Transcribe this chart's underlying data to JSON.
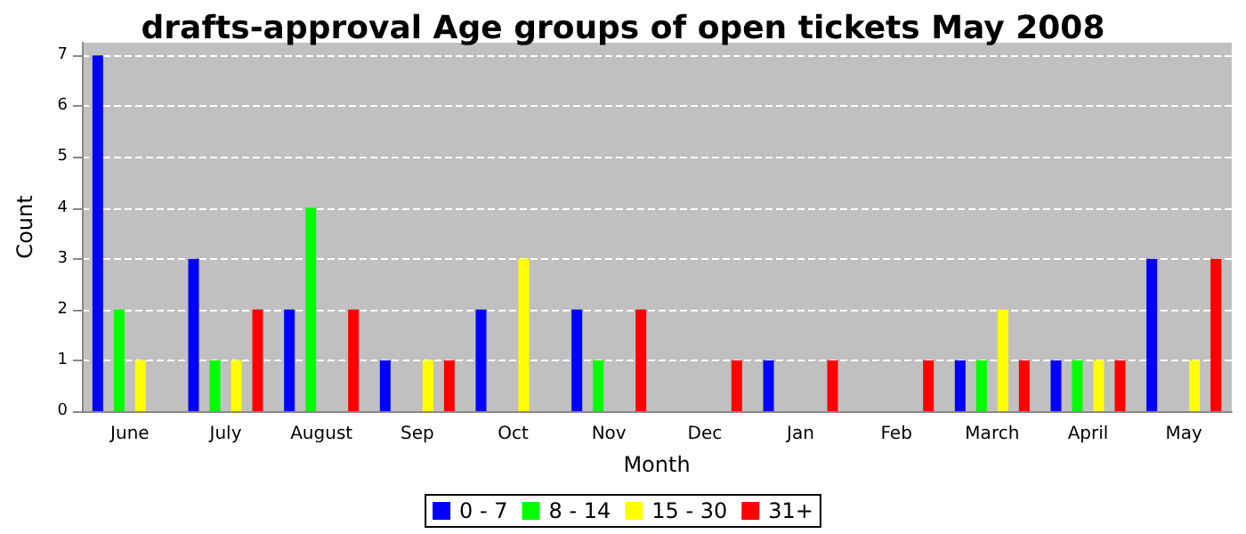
{
  "chart_data": {
    "type": "bar",
    "title": "drafts-approval Age groups of open tickets May 2008",
    "xlabel": "Month",
    "ylabel": "Count",
    "categories": [
      "June",
      "July",
      "August",
      "Sep",
      "Oct",
      "Nov",
      "Dec",
      "Jan",
      "Feb",
      "March",
      "April",
      "May"
    ],
    "series": [
      {
        "name": "0 - 7",
        "color": "#0000ff",
        "values": [
          7,
          3,
          2,
          1,
          2,
          2,
          0,
          1,
          0,
          1,
          1,
          3
        ]
      },
      {
        "name": "8 - 14",
        "color": "#00ff00",
        "values": [
          2,
          1,
          4,
          0,
          0,
          1,
          0,
          0,
          0,
          1,
          1,
          0
        ]
      },
      {
        "name": "15 - 30",
        "color": "#ffff00",
        "values": [
          1,
          1,
          0,
          1,
          3,
          0,
          0,
          0,
          0,
          2,
          1,
          1
        ]
      },
      {
        "name": "31+",
        "color": "#ff0000",
        "values": [
          0,
          2,
          2,
          1,
          0,
          2,
          1,
          1,
          1,
          1,
          1,
          3
        ]
      }
    ],
    "ylim": [
      0,
      7.25
    ],
    "yticks": [
      0,
      1,
      2,
      3,
      4,
      5,
      6,
      7
    ],
    "grid": "y",
    "legend": "bottom"
  }
}
